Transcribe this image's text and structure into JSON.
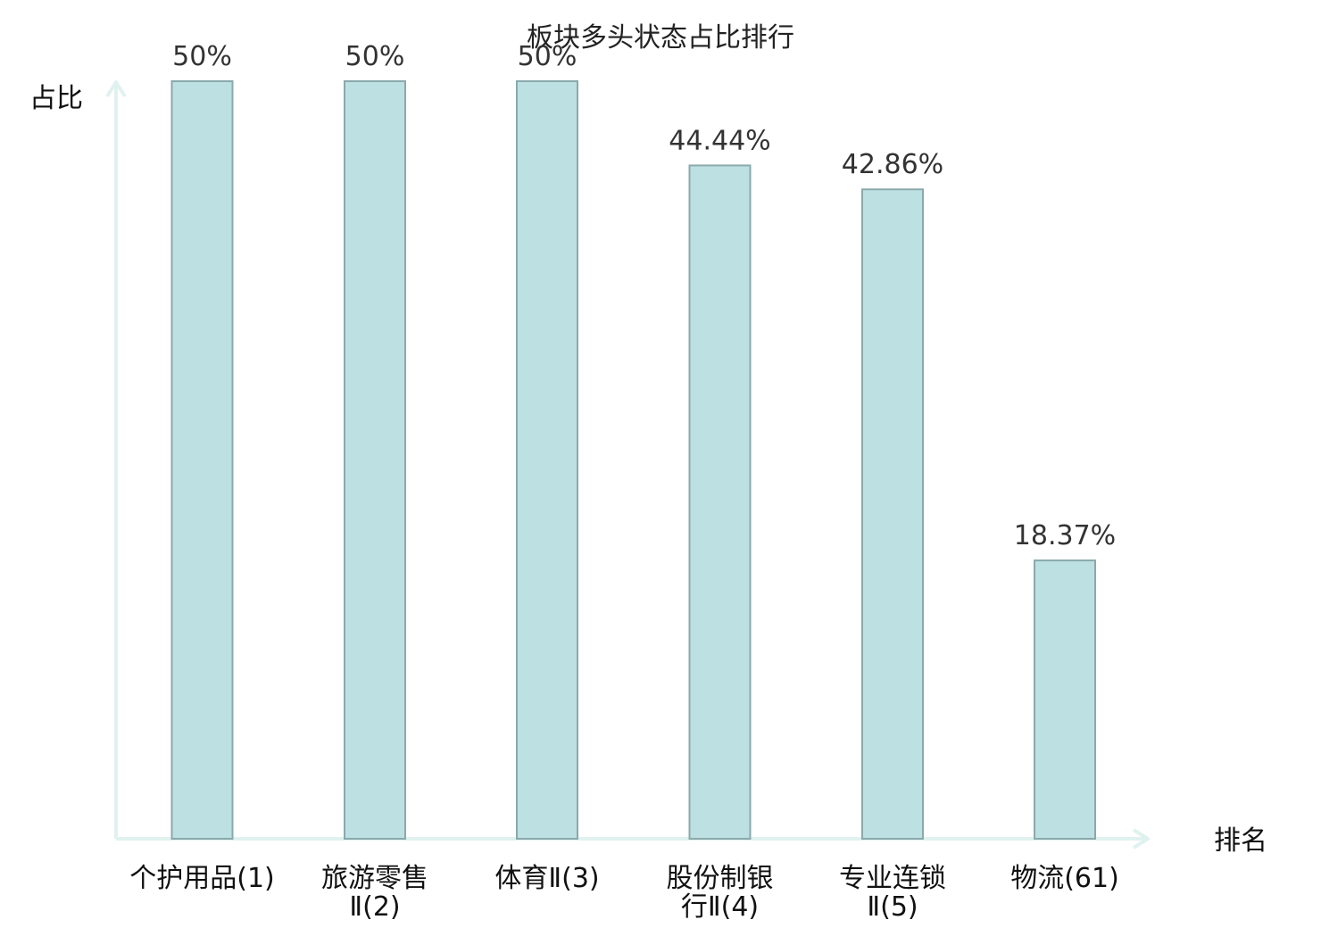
{
  "chart_data": {
    "type": "bar",
    "title": "板块多头状态占比排行",
    "xlabel": "排名",
    "ylabel": "占比",
    "ylim": [
      0,
      50
    ],
    "grid": false,
    "categories": [
      [
        "个护用品(1)"
      ],
      [
        "旅游零售",
        "Ⅱ(2)"
      ],
      [
        "体育Ⅱ(3)"
      ],
      [
        "股份制银",
        "行Ⅱ(4)"
      ],
      [
        "专业连锁",
        "Ⅱ(5)"
      ],
      [
        "物流(61)"
      ]
    ],
    "values": [
      50,
      50,
      50,
      44.44,
      42.86,
      18.37
    ],
    "value_labels": [
      "50%",
      "50%",
      "50%",
      "44.44%",
      "42.86%",
      "18.37%"
    ],
    "highlight_index": 5,
    "colors": {
      "bar_fill": "#bde0e3",
      "bar_stroke": "#8aa9ab",
      "axis": "#e0f2ef",
      "highlight_text": "#e8101b",
      "text": "#111111",
      "value_text": "#333333"
    }
  }
}
